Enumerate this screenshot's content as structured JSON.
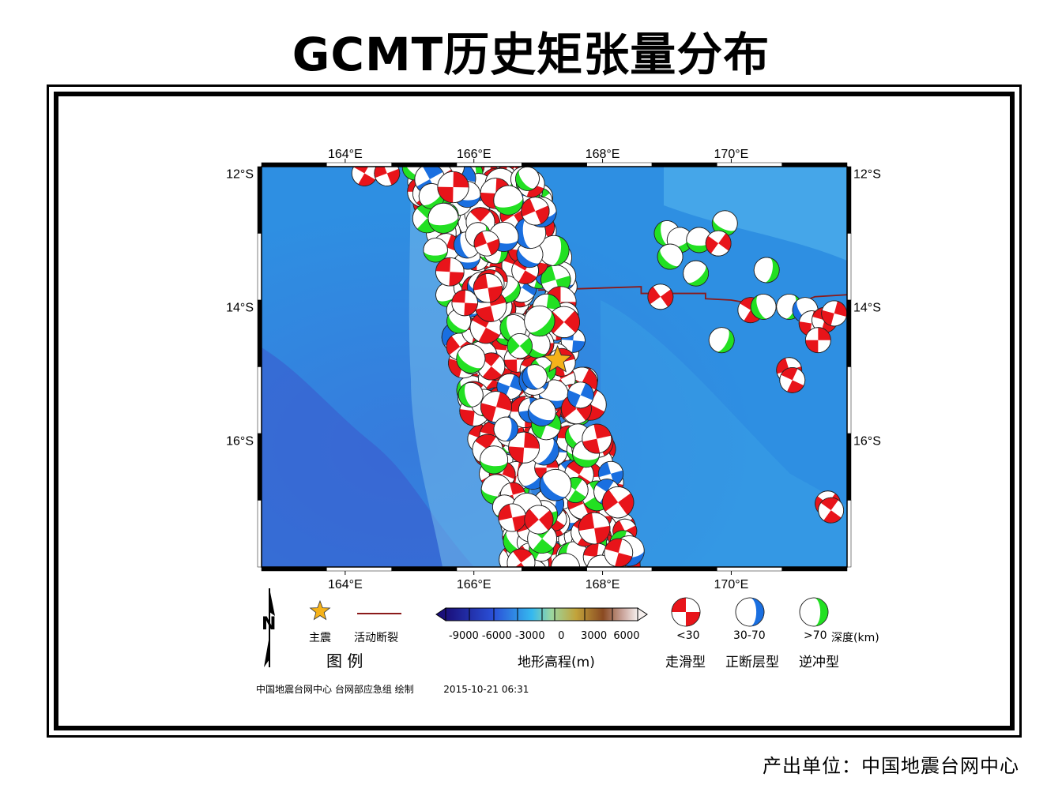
{
  "title": "GCMT历史矩张量分布",
  "map": {
    "lon_range": [
      162.7,
      171.8
    ],
    "lat_range": [
      -17.9,
      -11.9
    ],
    "lon_ticks": [
      "164°E",
      "166°E",
      "168°E",
      "170°E"
    ],
    "lon_tick_values": [
      164,
      166,
      168,
      170
    ],
    "lat_ticks": [
      "12°S",
      "14°S",
      "16°S"
    ],
    "lat_tick_values": [
      -12,
      -14,
      -16
    ],
    "main_shock": {
      "lon": 167.3,
      "lat": -14.8
    },
    "fault_line": [
      [
        167.0,
        -13.75
      ],
      [
        168.6,
        -13.7
      ],
      [
        168.6,
        -13.8
      ],
      [
        169.6,
        -13.8
      ],
      [
        169.6,
        -13.88
      ],
      [
        170.0,
        -13.9
      ],
      [
        170.3,
        -13.95
      ],
      [
        170.9,
        -14.0
      ],
      [
        171.3,
        -13.85
      ],
      [
        171.8,
        -13.82
      ]
    ],
    "colors": {
      "strike_slip": "#e8141a",
      "normal": "#1a6fe0",
      "thrust": "#22e022",
      "fault": "#8b1a1a",
      "star": "#f5b21a",
      "ocean": "#2f9be6"
    }
  },
  "legend": {
    "title": "图  例",
    "main_shock_label": "主震",
    "fault_label": "活动断裂",
    "topo_ticks": "-9000 -6000 -3000    0     3000  6000",
    "topo_label": "地形高程(m)",
    "depth_shallow": "<30",
    "depth_mid": "30-70",
    "depth_deep": ">70",
    "depth_unit": "深度(km)",
    "type_strike_slip": "走滑型",
    "type_normal": "正断层型",
    "type_thrust": "逆冲型",
    "north_label": "N"
  },
  "credit": {
    "org": "中国地震台网中心 台网部应急组 绘制",
    "time": "2015-10-21 06:31"
  },
  "footer": "产出单位：中国地震台网中心"
}
